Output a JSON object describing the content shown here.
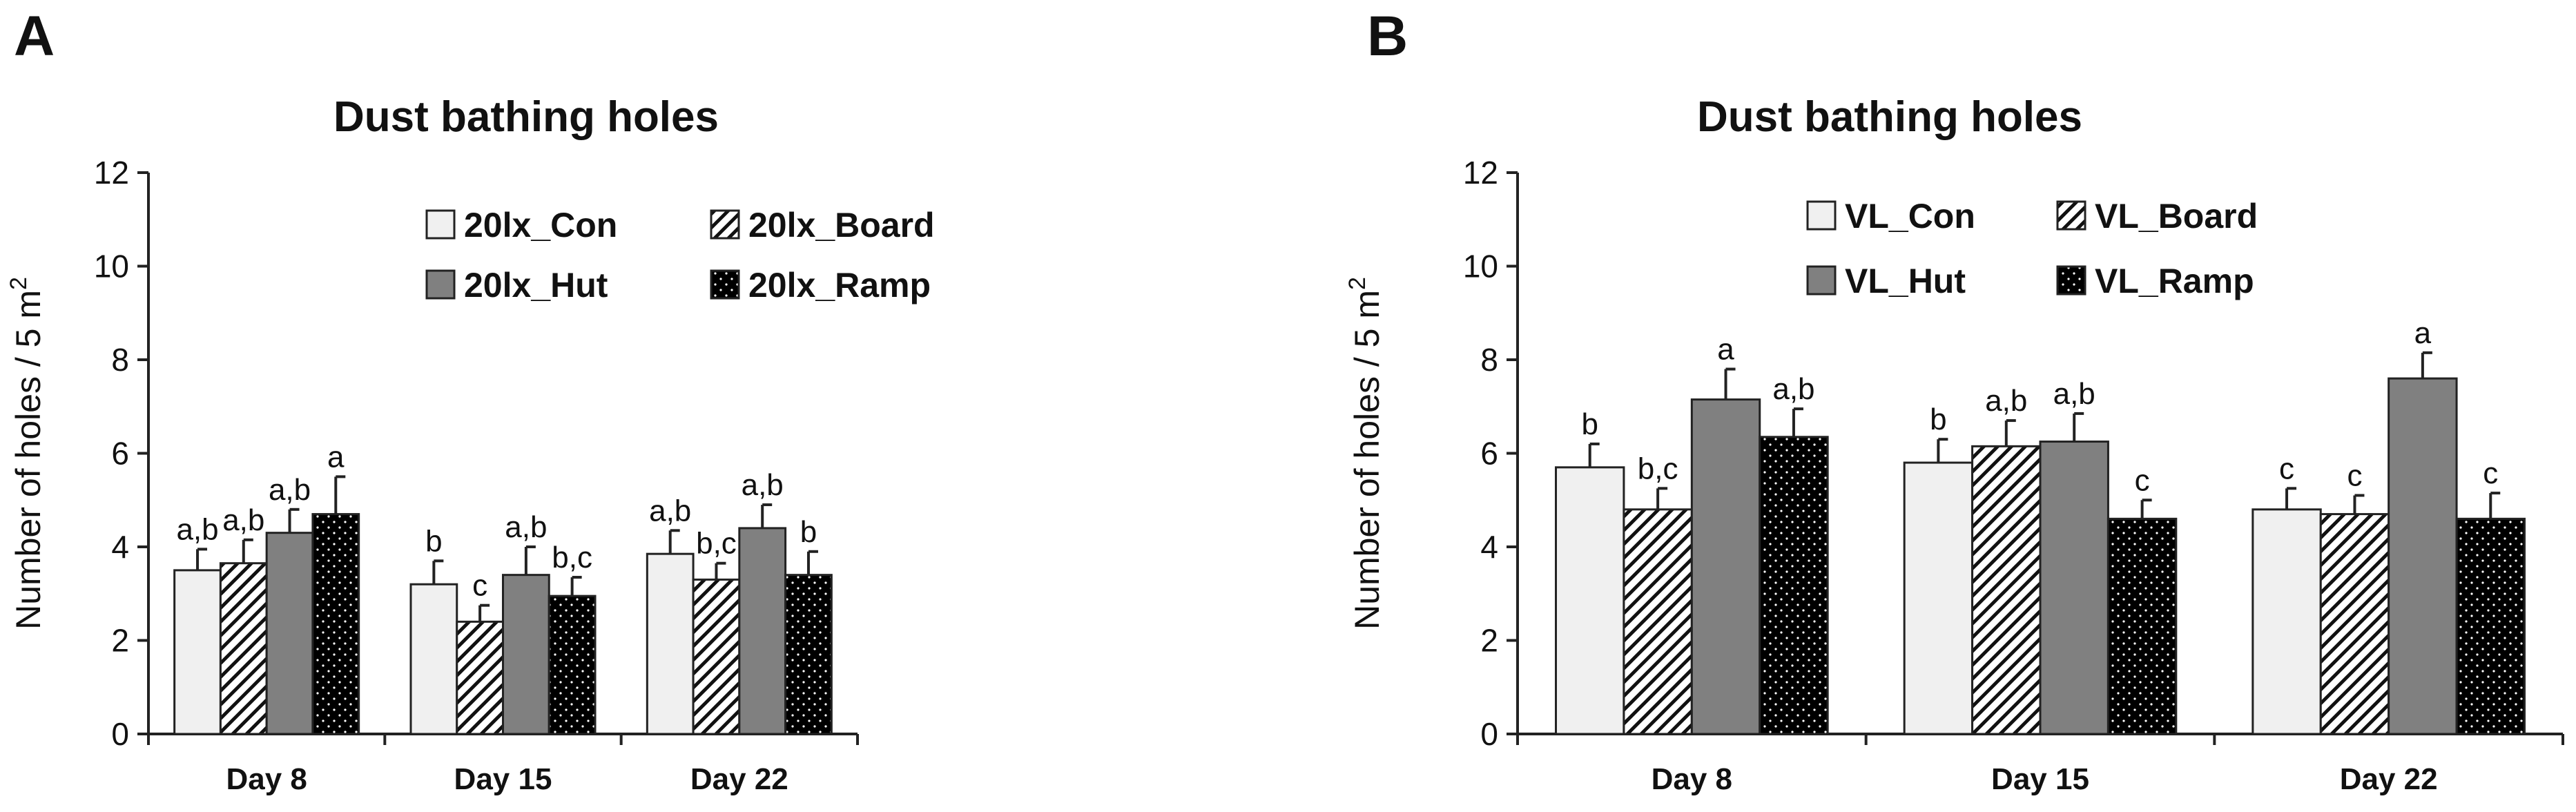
{
  "colors": {
    "con": "#f0f0f0",
    "hut": "#808080",
    "ramp": "#000000",
    "stroke": "#222222"
  },
  "chart_data": [
    {
      "type": "bar",
      "panel": "A",
      "title": "Dust bathing holes",
      "xlabel": "",
      "ylabel": "Number of holes / 5 m",
      "ylabel_superscript": "2",
      "ylim": [
        0,
        12
      ],
      "yticks": [
        "0",
        "2",
        "4",
        "6",
        "8",
        "10",
        "12"
      ],
      "grid": false,
      "legend_position": "top-center",
      "categories": [
        "Day 8",
        "Day 15",
        "Day 22"
      ],
      "series": [
        {
          "name": "20lx_Con",
          "pattern": "solid-light",
          "values": [
            3.5,
            3.2,
            3.85
          ],
          "errors": [
            0.45,
            0.5,
            0.5
          ],
          "labels": [
            "a,b",
            "b",
            "a,b"
          ]
        },
        {
          "name": "20lx_Board",
          "pattern": "hatch",
          "values": [
            3.65,
            2.4,
            3.3
          ],
          "errors": [
            0.5,
            0.35,
            0.35
          ],
          "labels": [
            "a,b",
            "c",
            "b,c"
          ]
        },
        {
          "name": "20lx_Hut",
          "pattern": "solid-gray",
          "values": [
            4.3,
            3.4,
            4.4
          ],
          "errors": [
            0.5,
            0.6,
            0.5
          ],
          "labels": [
            "a,b",
            "a,b",
            "a,b"
          ]
        },
        {
          "name": "20lx_Ramp",
          "pattern": "dots",
          "values": [
            4.7,
            2.95,
            3.4
          ],
          "errors": [
            0.8,
            0.4,
            0.5
          ],
          "labels": [
            "a",
            "b,c",
            "b"
          ]
        }
      ]
    },
    {
      "type": "bar",
      "panel": "B",
      "title": "Dust bathing holes",
      "xlabel": "",
      "ylabel": "Number of holes / 5 m",
      "ylabel_superscript": "2",
      "ylim": [
        0,
        12
      ],
      "yticks": [
        "0",
        "2",
        "4",
        "6",
        "8",
        "10",
        "12"
      ],
      "grid": false,
      "legend_position": "top-center",
      "categories": [
        "Day 8",
        "Day 15",
        "Day 22"
      ],
      "series": [
        {
          "name": "VL_Con",
          "pattern": "solid-light",
          "values": [
            5.7,
            5.8,
            4.8
          ],
          "errors": [
            0.5,
            0.5,
            0.45
          ],
          "labels": [
            "b",
            "b",
            "c"
          ]
        },
        {
          "name": "VL_Board",
          "pattern": "hatch",
          "values": [
            4.8,
            6.15,
            4.7
          ],
          "errors": [
            0.45,
            0.55,
            0.4
          ],
          "labels": [
            "b,c",
            "a,b",
            "c"
          ]
        },
        {
          "name": "VL_Hut",
          "pattern": "solid-gray",
          "values": [
            7.15,
            6.25,
            7.6
          ],
          "errors": [
            0.65,
            0.6,
            0.55
          ],
          "labels": [
            "a",
            "a,b",
            "a"
          ]
        },
        {
          "name": "VL_Ramp",
          "pattern": "dots",
          "values": [
            6.35,
            4.6,
            4.6
          ],
          "errors": [
            0.6,
            0.4,
            0.55
          ],
          "labels": [
            "a,b",
            "c",
            "c"
          ]
        }
      ]
    }
  ]
}
